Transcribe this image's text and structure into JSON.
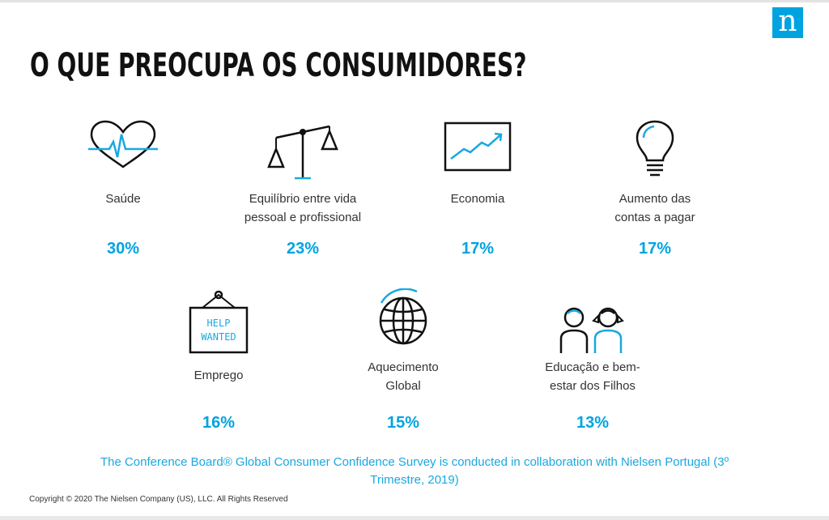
{
  "header": {
    "title": "O QUE PREOCUPA OS CONSUMIDORES?",
    "logo_letter": "n",
    "brand_color": "#00a3e0"
  },
  "concerns": [
    {
      "icon": "heart-pulse-icon",
      "label": "Saúde",
      "percent": "30%"
    },
    {
      "icon": "balance-scale-icon",
      "label": "Equilíbrio entre vida\npessoal e profissional",
      "percent": "23%"
    },
    {
      "icon": "economy-chart-icon",
      "label": "Economia",
      "percent": "17%"
    },
    {
      "icon": "lightbulb-icon",
      "label": "Aumento das\ncontas a pagar",
      "percent": "17%"
    },
    {
      "icon": "help-wanted-sign-icon",
      "label": "Emprego",
      "percent": "16%",
      "sign_text": [
        "HELP",
        "WANTED"
      ]
    },
    {
      "icon": "globe-icon",
      "label": "Aquecimento\nGlobal",
      "percent": "15%"
    },
    {
      "icon": "children-icon",
      "label": "Educação e bem-\nestar dos Filhos",
      "percent": "13%"
    }
  ],
  "footer": {
    "note": "The Conference Board® Global Consumer Confidence Survey is conducted in collaboration with Nielsen Portugal (3º Trimestre, 2019)",
    "copyright": "Copyright © 2020 The Nielsen Company (US), LLC. All Rights Reserved"
  }
}
